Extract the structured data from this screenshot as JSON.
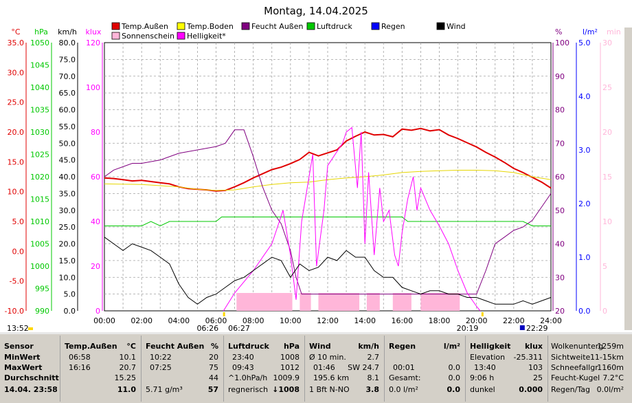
{
  "chart_data": {
    "type": "line",
    "title": "Montag, 14.04.2025",
    "x_ticks": [
      "00:00",
      "02:00",
      "04:00",
      "06:00",
      "08:00",
      "10:00",
      "12:00",
      "14:00",
      "16:00",
      "18:00",
      "20:00",
      "22:00",
      "24:00"
    ],
    "sunrise": "06:26",
    "sunrise_right": "06:27",
    "sunset": "20:19",
    "dark": "22:29",
    "start_time": "13:52",
    "legend": [
      {
        "label": "Temp.Außen",
        "color": "#e00000"
      },
      {
        "label": "Temp.Boden",
        "color": "#ffff00"
      },
      {
        "label": "Feucht Außen",
        "color": "#800080"
      },
      {
        "label": "Luftdruck",
        "color": "#00c800"
      },
      {
        "label": "Regen",
        "color": "#0000ff"
      },
      {
        "label": "Wind",
        "color": "#000000"
      },
      {
        "label": "Sonnenschein",
        "color": "#ffb6d9"
      },
      {
        "label": "Helligkeit*",
        "color": "#ff00ff"
      }
    ],
    "axes": [
      {
        "unit": "°C",
        "color": "#e00000",
        "ticks": [
          "35.0",
          "30.0",
          "25.0",
          "20.0",
          "15.0",
          "10.0",
          "5.0",
          "0.0",
          "-5.0",
          "-10.0"
        ],
        "range": [
          -10,
          35
        ]
      },
      {
        "unit": "hPa",
        "color": "#00c800",
        "ticks": [
          "1050",
          "1045",
          "1040",
          "1035",
          "1030",
          "1025",
          "1020",
          "1015",
          "1010",
          "1005",
          "1000",
          "995",
          "990"
        ],
        "range": [
          990,
          1050
        ]
      },
      {
        "unit": "km/h",
        "color": "#000000",
        "ticks": [
          "80.0",
          "75.0",
          "70.0",
          "65.0",
          "60.0",
          "55.0",
          "50.0",
          "45.0",
          "40.0",
          "35.0",
          "30.0",
          "25.0",
          "20.0",
          "15.0",
          "10.0",
          "5.0",
          "0.0"
        ],
        "range": [
          0,
          80
        ]
      },
      {
        "unit": "klux",
        "color": "#ff00ff",
        "ticks": [
          "120",
          "100",
          "80",
          "60",
          "40",
          "20",
          "0"
        ],
        "range": [
          0,
          120
        ]
      },
      {
        "unit": "%",
        "color": "#800080",
        "ticks": [
          "100",
          "90",
          "80",
          "70",
          "60",
          "50",
          "40",
          "30",
          "20"
        ],
        "range": [
          20,
          100
        ]
      },
      {
        "unit": "l/m²",
        "color": "#0000ff",
        "ticks": [
          "5.0",
          "4.0",
          "3.0",
          "2.0",
          "1.0",
          "0.0"
        ],
        "range": [
          0,
          5
        ]
      },
      {
        "unit": "min",
        "color": "#ffb6d9",
        "ticks": [
          "30",
          "25",
          "20",
          "15",
          "10",
          "5",
          "0"
        ],
        "range": [
          0,
          30
        ]
      }
    ],
    "series": [
      {
        "name": "Temp.Außen",
        "axis": "°C",
        "color": "#e00000",
        "x": [
          0,
          0.5,
          1,
          1.5,
          2,
          3,
          3.5,
          4,
          4.5,
          5,
          5.5,
          6,
          6.5,
          7,
          7.5,
          8,
          8.5,
          9,
          9.5,
          10,
          10.5,
          11,
          11.5,
          12,
          12.5,
          13,
          13.5,
          14,
          14.5,
          15,
          15.5,
          16,
          16.5,
          17,
          17.5,
          18,
          18.5,
          19,
          19.5,
          20,
          20.5,
          21,
          21.5,
          22,
          22.5,
          23,
          23.5,
          24
        ],
        "y": [
          12.3,
          12.2,
          12,
          11.8,
          11.9,
          11.5,
          11.3,
          10.8,
          10.5,
          10.4,
          10.3,
          10.1,
          10.2,
          10.8,
          11.5,
          12.3,
          13,
          13.7,
          14.1,
          14.7,
          15.4,
          16.6,
          16,
          16.5,
          17,
          18.5,
          19.3,
          20,
          19.5,
          19.6,
          19.2,
          20.5,
          20.3,
          20.6,
          20.2,
          20.4,
          19.5,
          18.9,
          18.2,
          17.5,
          16.6,
          15.8,
          14.9,
          13.9,
          13.2,
          12.4,
          11.6,
          10.6
        ]
      },
      {
        "name": "Temp.Boden",
        "axis": "°C",
        "color": "#e6d600",
        "x": [
          0,
          2,
          4,
          5,
          6,
          7,
          8,
          9,
          10,
          11,
          12,
          13,
          14,
          15,
          16,
          17,
          18,
          19,
          20,
          21,
          22,
          23,
          24
        ],
        "y": [
          11.3,
          11.2,
          10.8,
          10.4,
          10.2,
          10.3,
          10.8,
          11.2,
          11.5,
          11.6,
          12,
          12.3,
          12.5,
          12.8,
          13.2,
          13.4,
          13.5,
          13.6,
          13.6,
          13.5,
          13.2,
          12.5,
          12
        ]
      },
      {
        "name": "Feucht Außen",
        "axis": "%",
        "color": "#800080",
        "x": [
          0,
          0.5,
          1,
          1.5,
          2,
          3,
          4,
          5,
          6,
          6.5,
          7,
          7.5,
          8,
          8.5,
          9,
          9.5,
          10,
          10.3,
          10.6,
          11,
          11.5,
          12,
          12.5,
          13,
          13.5,
          14,
          14.5,
          15,
          15.5,
          16,
          16.5,
          17,
          17.5,
          18,
          18.5,
          19,
          19.5,
          20,
          20.5,
          21,
          21.5,
          22,
          22.5,
          23,
          23.5,
          24
        ],
        "y": [
          60,
          62,
          63,
          64,
          64,
          65,
          67,
          68,
          69,
          70,
          74,
          74,
          66,
          57,
          50,
          46,
          38,
          30,
          25,
          25,
          25,
          25,
          25,
          25,
          25,
          25,
          25,
          25,
          25,
          25,
          25,
          25,
          25,
          25,
          25,
          25,
          25,
          25,
          32,
          40,
          42,
          44,
          45,
          47,
          51,
          55
        ]
      },
      {
        "name": "Luftdruck",
        "axis": "hPa",
        "color": "#00c800",
        "x": [
          0,
          2,
          2.5,
          3,
          3.5,
          4,
          5,
          6,
          6.3,
          7,
          8,
          9,
          10,
          11,
          12,
          13,
          14,
          15,
          16,
          16.3,
          17,
          18,
          19,
          20,
          21,
          22,
          22.5,
          23,
          23.5,
          24
        ],
        "y": [
          1009,
          1009,
          1010,
          1009,
          1010,
          1010,
          1010,
          1010,
          1011,
          1011,
          1011,
          1011,
          1011,
          1011,
          1011,
          1011,
          1011,
          1011,
          1011,
          1010,
          1010,
          1010,
          1010,
          1010,
          1010,
          1010,
          1010,
          1009,
          1009,
          1009
        ]
      },
      {
        "name": "Helligkeit*",
        "axis": "klux",
        "color": "#ff00ff",
        "x": [
          6.4,
          7,
          8,
          9,
          9.6,
          10,
          10.3,
          10.6,
          11,
          11.2,
          11.4,
          11.8,
          12,
          12.4,
          12.8,
          13,
          13.3,
          13.6,
          13.8,
          14,
          14.2,
          14.5,
          14.8,
          15,
          15.3,
          15.6,
          15.8,
          16,
          16.3,
          16.6,
          16.8,
          17,
          17.5,
          18,
          18.5,
          19,
          19.5,
          20,
          20.2
        ],
        "y": [
          0,
          8,
          18,
          30,
          45,
          25,
          5,
          40,
          60,
          70,
          20,
          45,
          65,
          70,
          75,
          80,
          82,
          55,
          80,
          30,
          62,
          25,
          55,
          40,
          45,
          25,
          20,
          35,
          50,
          60,
          45,
          55,
          45,
          38,
          30,
          18,
          8,
          2,
          0
        ]
      },
      {
        "name": "Wind",
        "axis": "km/h",
        "color": "#000000",
        "x": [
          0,
          0.5,
          1,
          1.5,
          2,
          2.5,
          3,
          3.5,
          4,
          4.5,
          5,
          5.5,
          6,
          6.5,
          7,
          7.5,
          8,
          8.5,
          9,
          9.5,
          10,
          10.5,
          11,
          11.5,
          12,
          12.5,
          13,
          13.5,
          14,
          14.5,
          15,
          15.5,
          16,
          16.5,
          17,
          17.5,
          18,
          18.5,
          19,
          19.5,
          20,
          20.5,
          21,
          21.5,
          22,
          22.5,
          23,
          23.5,
          24
        ],
        "y": [
          22,
          20,
          18,
          20,
          19,
          18,
          16,
          14,
          8,
          4,
          2,
          4,
          5,
          7,
          9,
          10,
          12,
          14,
          16,
          15,
          10,
          14,
          12,
          13,
          16,
          15,
          18,
          16,
          16,
          12,
          10,
          10,
          7,
          6,
          5,
          6,
          6,
          5,
          5,
          4,
          4,
          3,
          2,
          2,
          2,
          3,
          2,
          3,
          4
        ]
      }
    ],
    "sunshine_blocks": [
      [
        7.1,
        10.1
      ],
      [
        10.5,
        11.1
      ],
      [
        11.5,
        13.7
      ],
      [
        14.1,
        14.8
      ],
      [
        15.5,
        16.5
      ],
      [
        17,
        19.1
      ]
    ],
    "summary": {
      "headers": [
        "Sensor",
        "Temp.Außen",
        "°C",
        "Feucht Außen",
        "%",
        "Luftdruck",
        "hPa",
        "Wind",
        "km/h",
        "Regen",
        "l/m²",
        "Helligkeit",
        "klux"
      ],
      "rows": {
        "min": {
          "label": "MinWert",
          "temp_time": "06:58",
          "temp": "10.1",
          "hum_time": "10:22",
          "hum": "20",
          "press_time": "23:40",
          "press": "1008",
          "wind_label": "Ø 10 min.",
          "wind": "2.7",
          "rain_label": "",
          "rain": "",
          "bright_label": "Elevation",
          "bright": "-25.311"
        },
        "max": {
          "label": "MaxWert",
          "temp_time": "16:16",
          "temp": "20.7",
          "hum_time": "07:25",
          "hum": "75",
          "press_time": "09:43",
          "press": "1012",
          "wind_label": "01:46",
          "wind_dir": "SW 24.7",
          "rain_label": "00:01",
          "rain": "0.0",
          "bright_label": "13:40",
          "bright": "103"
        },
        "avg": {
          "label": "Durchschnitt",
          "temp": "15.25",
          "hum": "44",
          "press_label": "^1.0hPa/h",
          "press": "1009.9",
          "wind_label": "195.6 km",
          "wind": "8.1",
          "rain_label": "Gesamt:",
          "rain": "0.0",
          "bright_label": "9:06 h",
          "bright": "25"
        },
        "current": {
          "label": "14.04. 23:58",
          "temp": "11.0",
          "hum_abs": "5.71 g/m³",
          "hum": "57",
          "press_label": "regnerisch",
          "press": "↓1008",
          "wind_label": "1 Bft N-NO",
          "wind": "3.8",
          "rain_label": "0.0 l/m²",
          "rain": "0.0",
          "bright_label": "dunkel",
          "bright": "0.000"
        }
      },
      "extra": [
        {
          "label": "Wolkenunterg",
          "value": "1259m"
        },
        {
          "label": "Sichtweite",
          "value": "11-15km"
        },
        {
          "label": "Schneefallgr",
          "value": "1160m"
        },
        {
          "label": "Feucht-Kugel",
          "value": "7.2°C"
        },
        {
          "label": "Regen/Tag",
          "value": "0.0l/m²"
        }
      ]
    }
  }
}
